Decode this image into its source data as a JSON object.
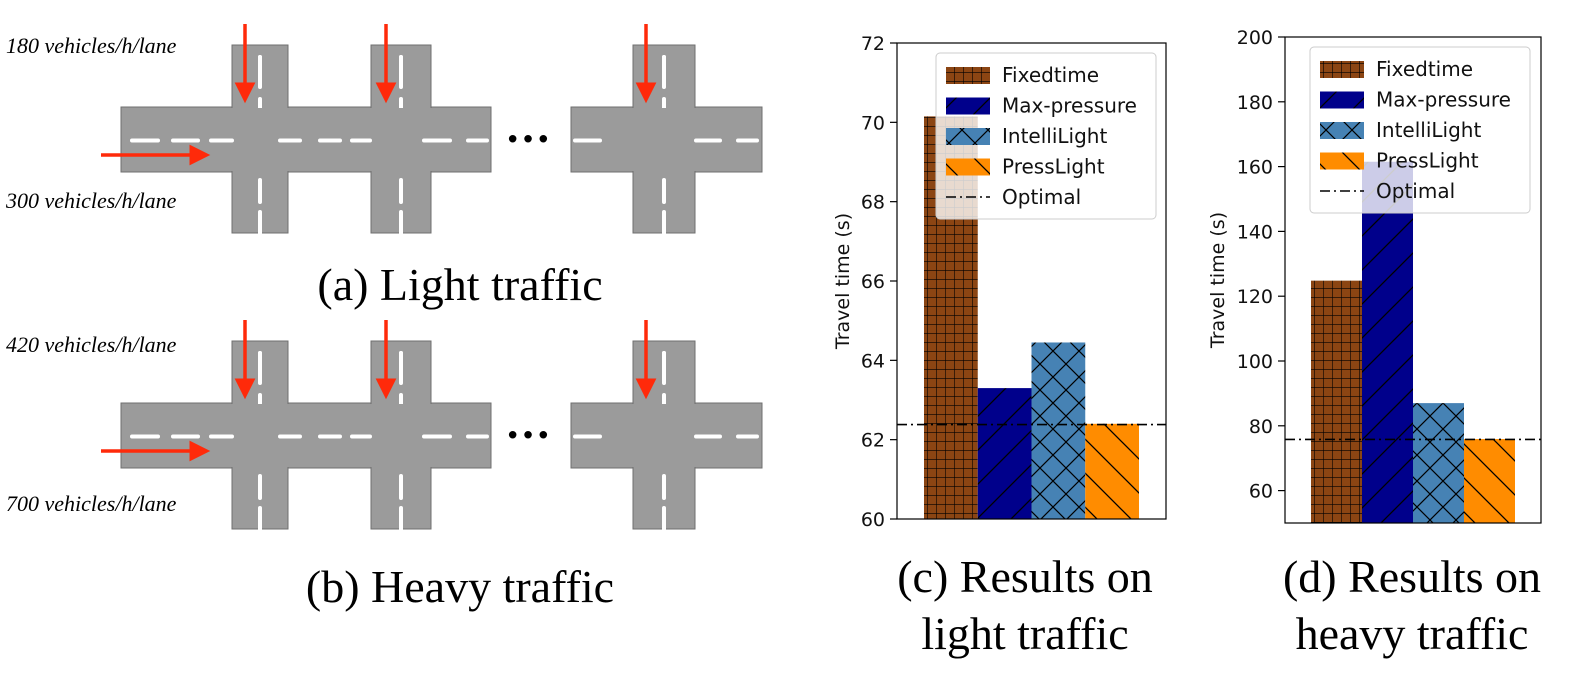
{
  "panel_a": {
    "caption": "(a) Light traffic",
    "vertical_flow": "180 vehicles/h/lane",
    "horizontal_flow": "300 vehicles/h/lane"
  },
  "panel_b": {
    "caption": "(b) Heavy traffic",
    "vertical_flow": "420 vehicles/h/lane",
    "horizontal_flow": "700 vehicles/h/lane"
  },
  "ellipsis": "•••",
  "colors": {
    "road": "#9b9b9b",
    "road_edge": "#6f6f6f",
    "lane_marking": "#ffffff",
    "arrow": "#ff2a0a",
    "Fixedtime": "#8b4513",
    "Max-pressure": "#00008b",
    "IntelliLight": "#4682b4",
    "PressLight": "#ff8c00"
  },
  "chart_data": [
    {
      "type": "bar",
      "caption_line1": "(c) Results on",
      "caption_line2": "light traffic",
      "ylabel": "Travel time (s)",
      "ylim": [
        60,
        72
      ],
      "yticks": [
        60,
        62,
        64,
        66,
        68,
        70,
        72
      ],
      "series": [
        {
          "name": "Fixedtime",
          "value": 70.15,
          "hatch": "grid"
        },
        {
          "name": "Max-pressure",
          "value": 63.3,
          "hatch": "slash"
        },
        {
          "name": "IntelliLight",
          "value": 64.45,
          "hatch": "cross"
        },
        {
          "name": "PressLight",
          "value": 62.4,
          "hatch": "backslash"
        }
      ],
      "reference_line": {
        "name": "Optimal",
        "value": 62.38,
        "style": "dash-dot"
      },
      "legend_position": "top-right"
    },
    {
      "type": "bar",
      "caption_line1": "(d) Results on",
      "caption_line2": "heavy traffic",
      "ylabel": "Travel time (s)",
      "ylim": [
        50,
        200
      ],
      "yticks": [
        60,
        80,
        100,
        120,
        140,
        160,
        180,
        200
      ],
      "series": [
        {
          "name": "Fixedtime",
          "value": 124.8,
          "hatch": "grid"
        },
        {
          "name": "Max-pressure",
          "value": 161.5,
          "hatch": "slash"
        },
        {
          "name": "IntelliLight",
          "value": 87.0,
          "hatch": "cross"
        },
        {
          "name": "PressLight",
          "value": 75.9,
          "hatch": "backslash"
        }
      ],
      "reference_line": {
        "name": "Optimal",
        "value": 75.8,
        "style": "dash-dot"
      },
      "legend_position": "top-right"
    }
  ]
}
